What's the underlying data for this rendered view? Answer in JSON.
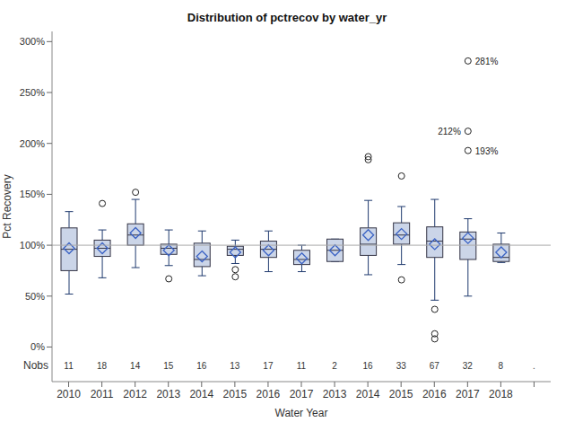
{
  "chart_data": {
    "type": "box",
    "title": "Distribution of pctrecov by water_yr",
    "x_label": "Water Year",
    "y_label": "Pct Recovery",
    "categories": [
      "2010",
      "2011",
      "2012",
      "2013",
      "2014",
      "2015",
      "2016",
      "2017",
      "2013",
      "2014",
      "2015",
      "2016",
      "2017",
      "2018",
      null
    ],
    "boxes": [
      {
        "low": 52,
        "q1": 75,
        "median": 96,
        "q3": 117,
        "high": 133,
        "mean": 97,
        "outliers": []
      },
      {
        "low": 68,
        "q1": 89,
        "median": 97,
        "q3": 105,
        "high": 115,
        "mean": 97,
        "outliers": [
          141
        ]
      },
      {
        "low": 78,
        "q1": 100,
        "median": 110,
        "q3": 121,
        "high": 145,
        "mean": 112,
        "outliers": [
          152
        ]
      },
      {
        "low": 80,
        "q1": 91,
        "median": 97,
        "q3": 101,
        "high": 115,
        "mean": 95,
        "outliers": [
          67
        ]
      },
      {
        "low": 70,
        "q1": 79,
        "median": 86,
        "q3": 102,
        "high": 114,
        "mean": 89,
        "outliers": []
      },
      {
        "low": 82,
        "q1": 90,
        "median": 96,
        "q3": 99,
        "high": 105,
        "mean": 93,
        "outliers": [
          76,
          69
        ]
      },
      {
        "low": 74,
        "q1": 88,
        "median": 96,
        "q3": 104,
        "high": 114,
        "mean": 95,
        "outliers": []
      },
      {
        "low": 74,
        "q1": 81,
        "median": 86,
        "q3": 95,
        "high": 100,
        "mean": 87,
        "outliers": []
      },
      {
        "low": 84,
        "q1": 84,
        "median": 95,
        "q3": 106,
        "high": 106,
        "mean": 95,
        "outliers": []
      },
      {
        "low": 71,
        "q1": 90,
        "median": 101,
        "q3": 117,
        "high": 144,
        "mean": 110,
        "outliers": [
          184,
          187
        ]
      },
      {
        "low": 81,
        "q1": 101,
        "median": 110,
        "q3": 122,
        "high": 138,
        "mean": 111,
        "outliers": [
          66,
          168
        ]
      },
      {
        "low": 46,
        "q1": 88,
        "median": 104,
        "q3": 118,
        "high": 145,
        "mean": 101,
        "outliers": [
          37,
          13,
          8
        ]
      },
      {
        "low": 50,
        "q1": 86,
        "median": 106,
        "q3": 113,
        "high": 126,
        "mean": 107,
        "outliers": [
          193,
          212,
          281
        ]
      },
      {
        "low": 83,
        "q1": 84,
        "median": 88,
        "q3": 101,
        "high": 112,
        "mean": 93,
        "outliers": []
      },
      null
    ],
    "nobs_label": "Nobs",
    "nobs": [
      11,
      18,
      14,
      15,
      16,
      13,
      17,
      11,
      2,
      16,
      33,
      67,
      32,
      8,
      "."
    ],
    "annotations": [
      {
        "index": 12,
        "value": 281,
        "text": "281%"
      },
      {
        "index": 12,
        "value": 212,
        "text": "212%"
      },
      {
        "index": 12,
        "value": 193,
        "text": "193%"
      }
    ],
    "reference_line": 100,
    "color": "#cbd5e8",
    "ylim": [
      -34,
      310
    ],
    "yticks": [
      {
        "value": 0,
        "label": "0%"
      },
      {
        "value": 50,
        "label": "50%"
      },
      {
        "value": 100,
        "label": "100%"
      },
      {
        "value": 150,
        "label": "150%"
      },
      {
        "value": 200,
        "label": "200%"
      },
      {
        "value": 250,
        "label": "250%"
      },
      {
        "value": 300,
        "label": "300%"
      }
    ]
  }
}
